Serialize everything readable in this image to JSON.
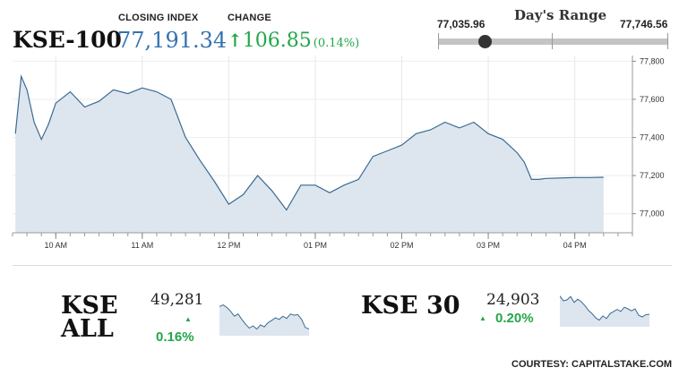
{
  "header": {
    "index_name": "KSE-100",
    "closing_index_label": "CLOSING INDEX",
    "closing_index_value": "77,191.34",
    "change_label": "CHANGE",
    "change_arrow": "↑",
    "change_value": "106.85",
    "change_pct": "(0.14%)"
  },
  "days_range": {
    "title": "Day's Range",
    "low": "77,035.96",
    "high": "77,746.56",
    "position_fraction": 0.2
  },
  "colors": {
    "accent_blue": "#3572b0",
    "positive_green": "#22a64a",
    "area_fill": "#dde6ee",
    "line": "#3a6a94"
  },
  "chart_data": {
    "type": "area",
    "x_ticks": [
      "10 AM",
      "11 AM",
      "12 PM",
      "01 PM",
      "02 PM",
      "03 PM",
      "04 PM"
    ],
    "y_ticks": [
      "77,800",
      "77,600",
      "77,400",
      "77,200",
      "77,000"
    ],
    "ylim": [
      76900,
      77830
    ],
    "grid": true,
    "x": [
      "09:32",
      "09:36",
      "09:40",
      "09:45",
      "09:50",
      "09:55",
      "10:00",
      "10:10",
      "10:20",
      "10:30",
      "10:40",
      "10:50",
      "11:00",
      "11:10",
      "11:20",
      "11:30",
      "11:40",
      "11:50",
      "12:00",
      "12:10",
      "12:20",
      "12:30",
      "12:40",
      "12:50",
      "13:00",
      "13:10",
      "13:20",
      "13:30",
      "13:40",
      "13:50",
      "14:00",
      "14:10",
      "14:20",
      "14:30",
      "14:40",
      "14:50",
      "15:00",
      "15:10",
      "15:20",
      "15:25",
      "15:30",
      "15:35",
      "15:40",
      "16:00",
      "16:10",
      "16:20"
    ],
    "y": [
      77420,
      77720,
      77650,
      77480,
      77390,
      77470,
      77580,
      77640,
      77560,
      77590,
      77650,
      77630,
      77660,
      77640,
      77600,
      77400,
      77280,
      77170,
      77050,
      77100,
      77200,
      77120,
      77020,
      77150,
      77150,
      77110,
      77150,
      77180,
      77300,
      77330,
      77360,
      77420,
      77440,
      77480,
      77450,
      77480,
      77420,
      77390,
      77320,
      77270,
      77180,
      77180,
      77185,
      77190,
      77190,
      77191
    ]
  },
  "kse_all": {
    "name_line1": "KSE",
    "name_line2": "ALL",
    "value": "49,281",
    "arrow": "▲",
    "pct": "0.16%",
    "spark": [
      0.85,
      0.9,
      0.82,
      0.7,
      0.55,
      0.62,
      0.45,
      0.3,
      0.18,
      0.25,
      0.15,
      0.28,
      0.22,
      0.35,
      0.42,
      0.5,
      0.45,
      0.55,
      0.48,
      0.62,
      0.58,
      0.6,
      0.45,
      0.2,
      0.15
    ]
  },
  "kse_30": {
    "name": "KSE 30",
    "value": "24,903",
    "arrow": "▲",
    "pct": "0.20%",
    "spark": [
      0.9,
      0.75,
      0.78,
      0.88,
      0.7,
      0.8,
      0.72,
      0.6,
      0.45,
      0.35,
      0.22,
      0.15,
      0.28,
      0.2,
      0.35,
      0.42,
      0.48,
      0.42,
      0.55,
      0.5,
      0.44,
      0.5,
      0.3,
      0.25,
      0.32,
      0.33
    ]
  },
  "footer": {
    "courtesy": "COURTESY: CAPITALSTAKE.COM"
  }
}
